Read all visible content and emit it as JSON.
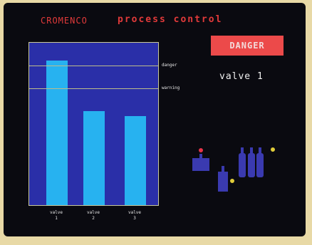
{
  "header": {
    "brand": "CROMENCO",
    "title": "process control"
  },
  "status": {
    "alert_label": "DANGER",
    "selected_valve": "valve 1",
    "alert_color": "#ec4a4a"
  },
  "chart_data": {
    "type": "bar",
    "categories": [
      [
        "valve",
        "1"
      ],
      [
        "valve",
        "2"
      ],
      [
        "valve",
        "3"
      ]
    ],
    "values": [
      0.89,
      0.58,
      0.55
    ],
    "thresholds": [
      {
        "name": "danger",
        "value": 0.86
      },
      {
        "name": "warning",
        "value": 0.72
      }
    ],
    "ylim": [
      0,
      1
    ],
    "bar_color": "#27b2f0",
    "background_color": "#2a2fa8"
  },
  "diagram": {
    "indicator_colors": {
      "red": "#e8344a",
      "yellow": "#e0cc3a"
    }
  }
}
